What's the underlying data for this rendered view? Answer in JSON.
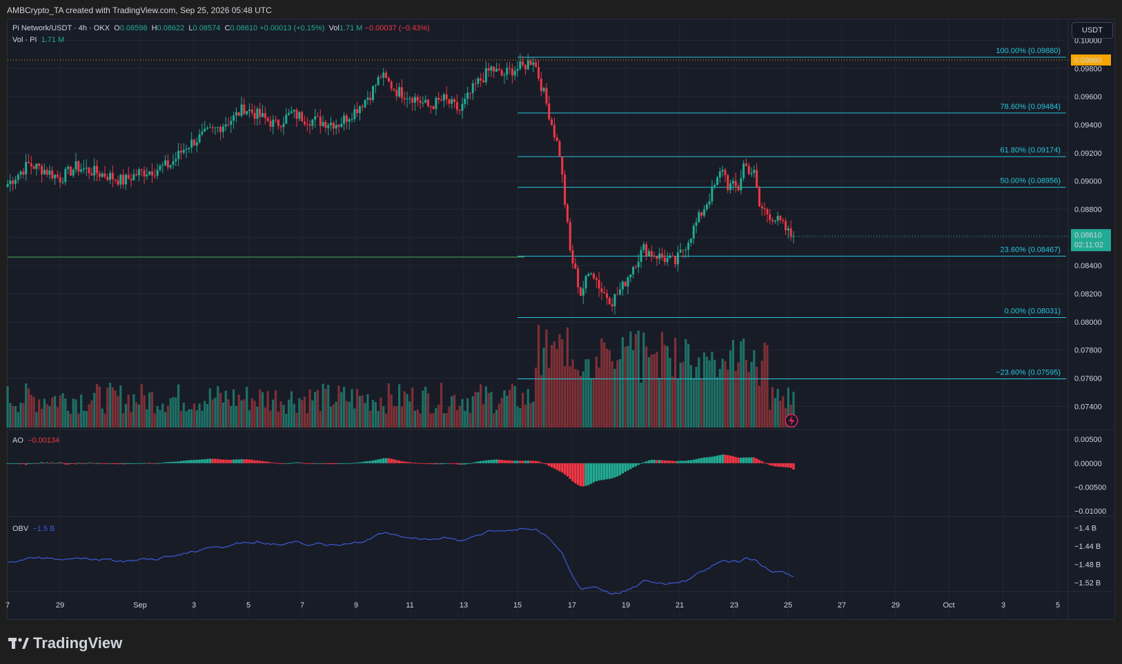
{
  "header": {
    "created": "AMBCrypto_TA created with TradingView.com, Sep 25, 2026 05:48 UTC"
  },
  "legend": {
    "symbol": "Pi Network/USDT · 4h · OKX",
    "o_label": "O",
    "o": "0.08598",
    "h_label": "H",
    "h": "0.08622",
    "l_label": "L",
    "l": "0.08574",
    "c_label": "C",
    "c": "0.08610",
    "change": "+0.00013 (+0.15%)",
    "vol_label": "Vol",
    "vol": "1.71 M",
    "vol_change": "−0.00037 (−0.43%)",
    "vol_row_label": "Vol · PI",
    "vol_row_value": "1.71 M",
    "ao_label": "AO",
    "ao_value": "−0.00134",
    "obv_label": "OBV",
    "obv_value": "−1.5 B"
  },
  "currency_button": "USDT",
  "price_tag": {
    "value": "0.08610",
    "countdown": "02:11:02"
  },
  "high_tag": "0.09860",
  "brand": "TradingView",
  "colors": {
    "up": "#22ab94",
    "down": "#f23645",
    "fib": "#26c6da",
    "obv": "#3e5bd6",
    "bg": "#181c27"
  },
  "chart_data": {
    "type": "candlestick",
    "symbol": "Pi Network/USDT",
    "timeframe": "4h",
    "exchange": "OKX",
    "y_axis_ticks": [
      "0.10000",
      "0.09800",
      "0.09600",
      "0.09400",
      "0.09200",
      "0.09000",
      "0.08800",
      "0.08600",
      "0.08400",
      "0.08200",
      "0.08000",
      "0.07800",
      "0.07600",
      "0.07400"
    ],
    "ylim": [
      0.0725,
      0.1011
    ],
    "x_axis_ticks": [
      "7",
      "29",
      "Sep",
      "3",
      "5",
      "7",
      "9",
      "11",
      "13",
      "15",
      "17",
      "19",
      "21",
      "23",
      "25",
      "27",
      "29",
      "Oct",
      "3",
      "5"
    ],
    "current_price": 0.0861,
    "horizontal_line": 0.0846,
    "fib_levels": [
      {
        "label": "100.00% (0.09880)",
        "value": 0.0988
      },
      {
        "label": "78.60% (0.09484)",
        "value": 0.09484
      },
      {
        "label": "61.80% (0.09174)",
        "value": 0.09174
      },
      {
        "label": "50.00% (0.08956)",
        "value": 0.08956
      },
      {
        "label": "23.60% (0.08467)",
        "value": 0.08467
      },
      {
        "label": "0.00% (0.08031)",
        "value": 0.08031
      },
      {
        "label": "−23.60% (0.07595)",
        "value": 0.07595
      }
    ],
    "close_path": [
      [
        0,
        0.0898
      ],
      [
        8,
        0.0912
      ],
      [
        14,
        0.0908
      ],
      [
        20,
        0.0902
      ],
      [
        26,
        0.091
      ],
      [
        32,
        0.0907
      ],
      [
        38,
        0.0904
      ],
      [
        44,
        0.09
      ],
      [
        50,
        0.0906
      ],
      [
        56,
        0.0908
      ],
      [
        62,
        0.0912
      ],
      [
        68,
        0.0925
      ],
      [
        74,
        0.0932
      ],
      [
        80,
        0.0938
      ],
      [
        86,
        0.0945
      ],
      [
        90,
        0.0952
      ],
      [
        96,
        0.0946
      ],
      [
        102,
        0.094
      ],
      [
        108,
        0.0948
      ],
      [
        114,
        0.0944
      ],
      [
        120,
        0.0942
      ],
      [
        126,
        0.0941
      ],
      [
        132,
        0.095
      ],
      [
        138,
        0.0962
      ],
      [
        142,
        0.0975
      ],
      [
        148,
        0.0964
      ],
      [
        154,
        0.096
      ],
      [
        160,
        0.0953
      ],
      [
        166,
        0.0958
      ],
      [
        172,
        0.095
      ],
      [
        178,
        0.0968
      ],
      [
        184,
        0.098
      ],
      [
        188,
        0.0975
      ],
      [
        192,
        0.0979
      ],
      [
        196,
        0.0981
      ],
      [
        200,
        0.0987
      ],
      [
        204,
        0.0962
      ],
      [
        210,
        0.092
      ],
      [
        214,
        0.085
      ],
      [
        218,
        0.082
      ],
      [
        222,
        0.0838
      ],
      [
        226,
        0.0822
      ],
      [
        230,
        0.0815
      ],
      [
        234,
        0.0825
      ],
      [
        238,
        0.084
      ],
      [
        242,
        0.0852
      ],
      [
        246,
        0.0848
      ],
      [
        250,
        0.0845
      ],
      [
        254,
        0.0842
      ],
      [
        258,
        0.0855
      ],
      [
        262,
        0.087
      ],
      [
        266,
        0.0885
      ],
      [
        270,
        0.09
      ],
      [
        272,
        0.091
      ],
      [
        274,
        0.0897
      ],
      [
        278,
        0.0895
      ],
      [
        280,
        0.0912
      ],
      [
        284,
        0.0905
      ],
      [
        286,
        0.0882
      ],
      [
        290,
        0.0876
      ],
      [
        294,
        0.087
      ],
      [
        298,
        0.0861
      ]
    ],
    "ao": {
      "label": "AO",
      "ticks": [
        "0.00500",
        "0.00000",
        "−0.00500",
        "−0.01000"
      ],
      "ylim": [
        -0.0107,
        0.0066
      ],
      "last": -0.00134
    },
    "obv": {
      "label": "OBV",
      "ticks": [
        "−1.4 B",
        "−1.44 B",
        "−1.48 B",
        "−1.52 B"
      ],
      "ylim": [
        -1.535,
        -1.38
      ],
      "last": -1.5
    }
  }
}
